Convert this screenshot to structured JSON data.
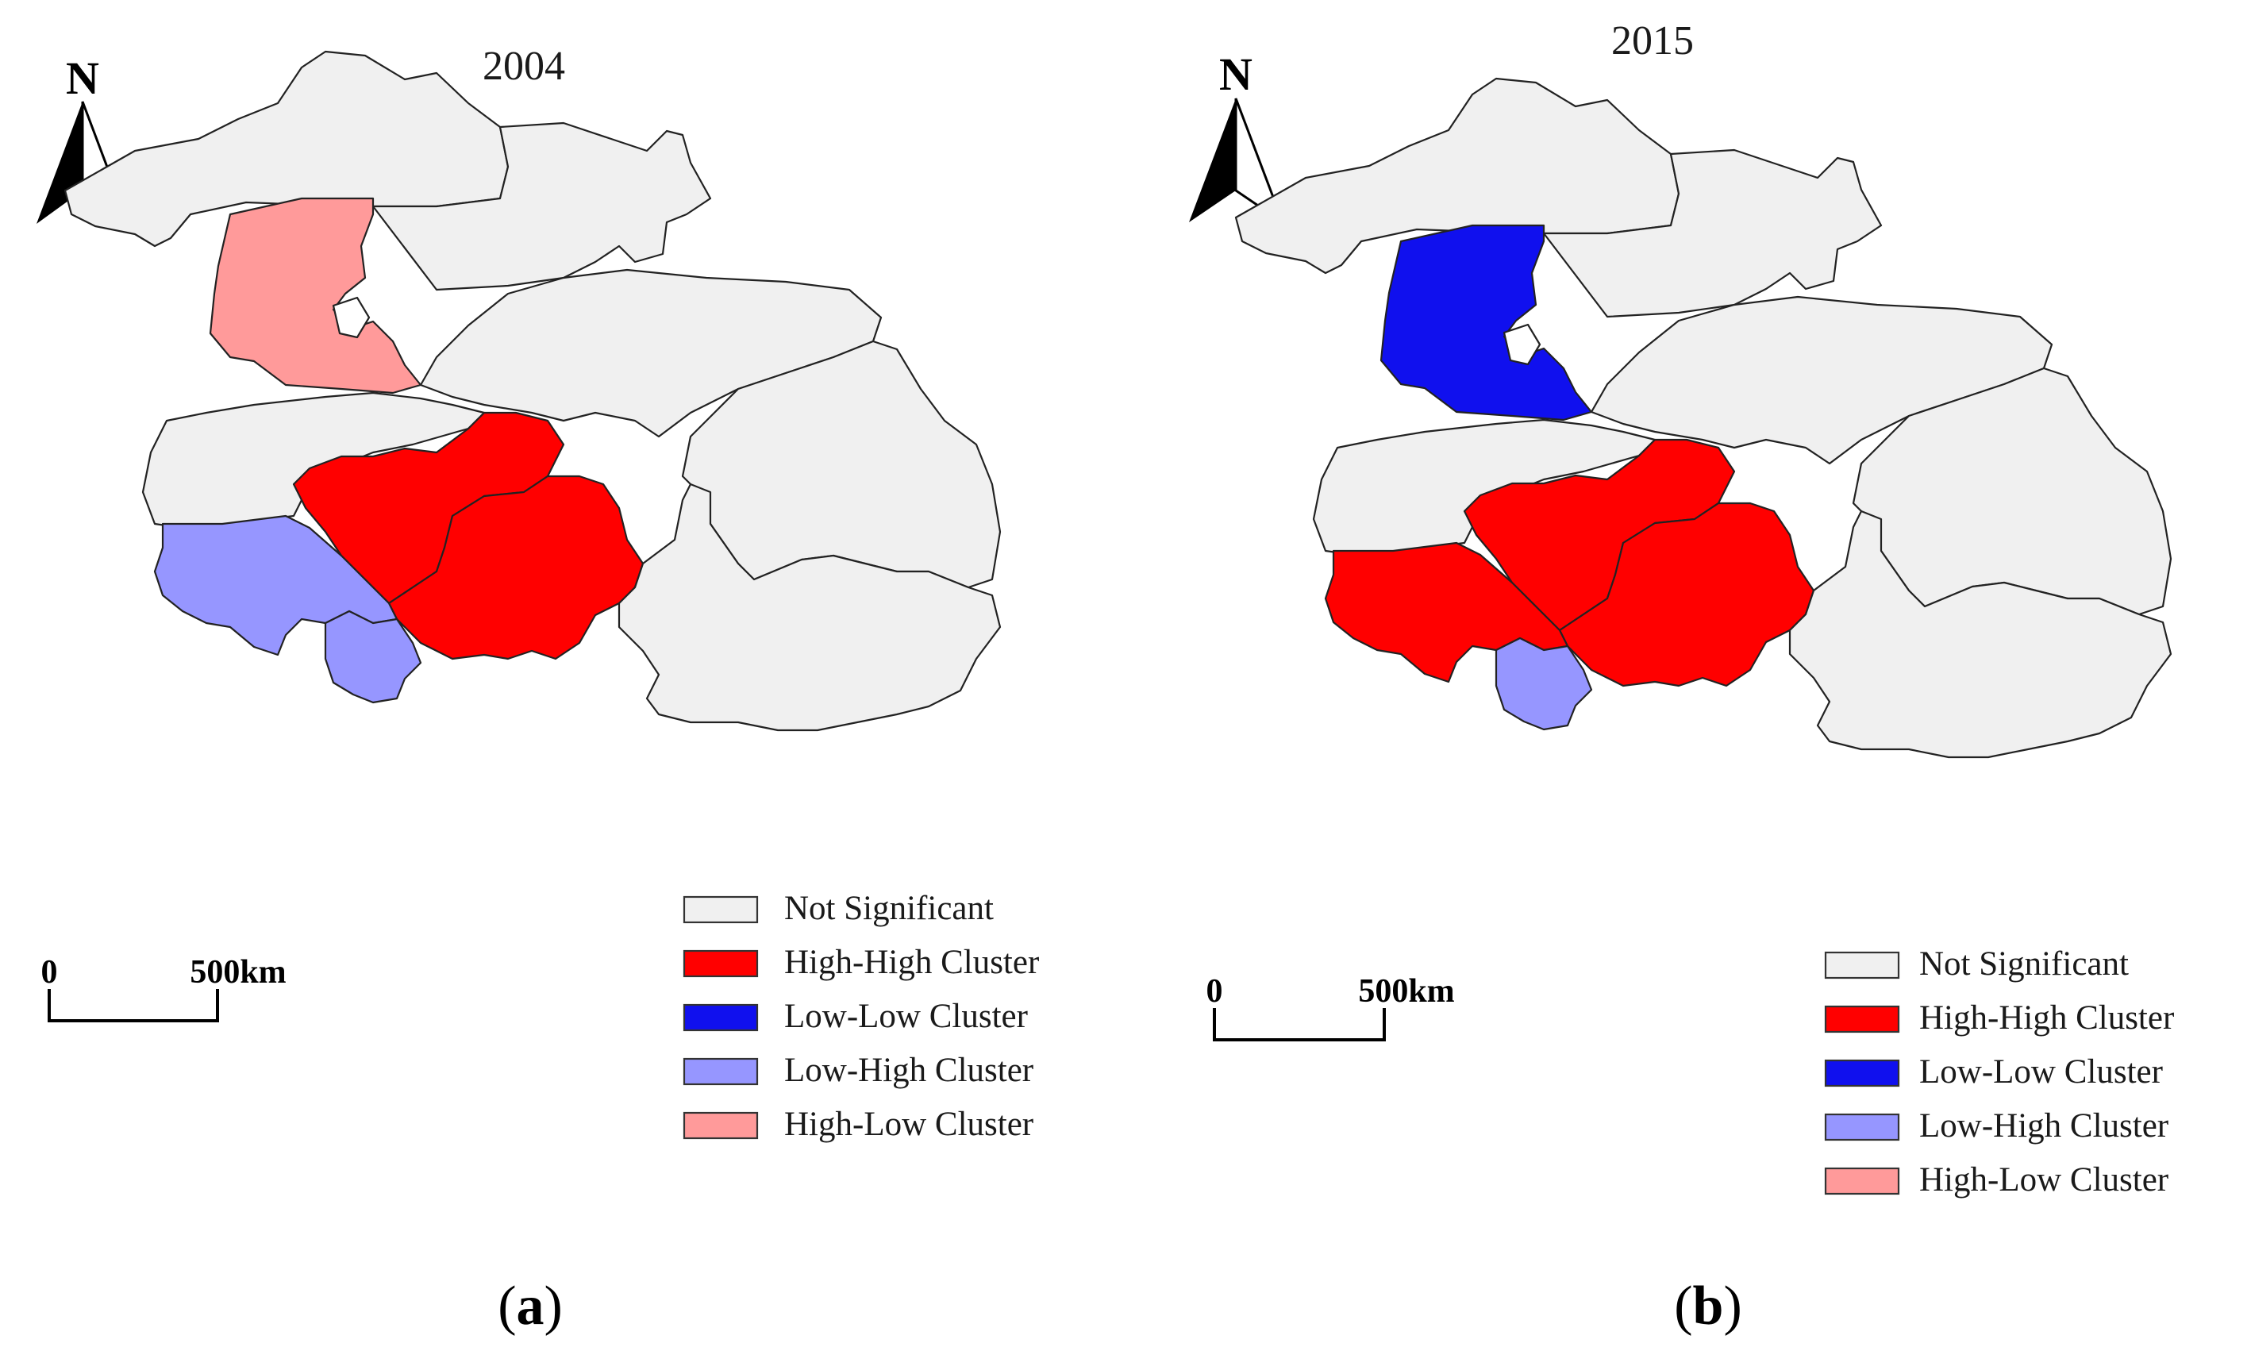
{
  "panels": [
    {
      "id": "a",
      "year": "2004",
      "label_letter": "a",
      "north_label": "N",
      "scale": {
        "start": "0",
        "end": "500km"
      },
      "regions": {
        "northwest": "Not Significant",
        "north": "Not Significant",
        "central_west": "High-Low Cluster",
        "central": "Not Significant",
        "east_north": "Not Significant",
        "west": "Not Significant",
        "south_center_a": "High-High Cluster",
        "south_center_b": "High-High Cluster",
        "east": "Not Significant",
        "southeast": "Not Significant",
        "southwest": "Low-High Cluster",
        "south_small": "Low-High Cluster"
      }
    },
    {
      "id": "b",
      "year": "2015",
      "label_letter": "b",
      "north_label": "N",
      "scale": {
        "start": "0",
        "end": "500km"
      },
      "regions": {
        "northwest": "Not Significant",
        "north": "Not Significant",
        "central_west": "Low-Low Cluster",
        "central": "Not Significant",
        "east_north": "Not Significant",
        "west": "Not Significant",
        "south_center_a": "High-High Cluster",
        "south_center_b": "High-High Cluster",
        "east": "Not Significant",
        "southeast": "Not Significant",
        "southwest": "High-High Cluster",
        "south_small": "Low-High Cluster"
      }
    }
  ],
  "legend": [
    {
      "label": "Not Significant",
      "color": "#f0f0f0"
    },
    {
      "label": "High-High Cluster",
      "color": "#ff0000"
    },
    {
      "label": "Low-Low Cluster",
      "color": "#1010ee"
    },
    {
      "label": "Low-High Cluster",
      "color": "#9696ff"
    },
    {
      "label": "High-Low Cluster",
      "color": "#ff9a9a"
    }
  ]
}
